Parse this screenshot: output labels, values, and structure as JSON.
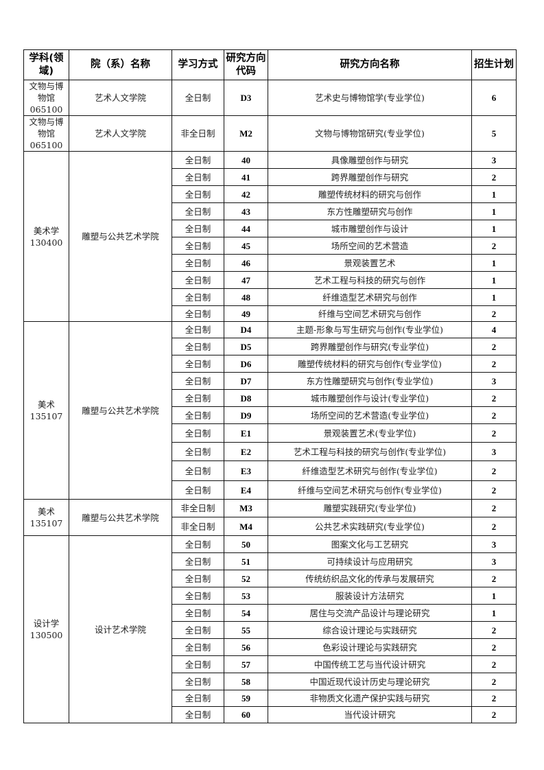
{
  "headers": [
    "学科(领域)",
    "院（系）名称",
    "学习方式",
    "研究方向代码",
    "研究方向名称",
    "招生计划"
  ],
  "groups": [
    {
      "discipline": "文物与博物馆",
      "code": "065100",
      "department": "艺术人文学院",
      "rows": [
        {
          "mode": "全日制",
          "code": "D3",
          "name": "艺术史与博物馆学(专业学位)",
          "plan": "6"
        }
      ]
    },
    {
      "discipline": "文物与博物馆",
      "code": "065100",
      "department": "艺术人文学院",
      "rows": [
        {
          "mode": "非全日制",
          "code": "M2",
          "name": "文物与博物馆研究(专业学位)",
          "plan": "5"
        }
      ]
    },
    {
      "discipline": "美术学",
      "code": "130400",
      "department": "雕塑与公共艺术学院",
      "rows": [
        {
          "mode": "全日制",
          "code": "40",
          "name": "具像雕塑创作与研究",
          "plan": "3"
        },
        {
          "mode": "全日制",
          "code": "41",
          "name": "跨界雕塑创作与研究",
          "plan": "2"
        },
        {
          "mode": "全日制",
          "code": "42",
          "name": "雕塑传统材料的研究与创作",
          "plan": "1"
        },
        {
          "mode": "全日制",
          "code": "43",
          "name": "东方性雕塑研究与创作",
          "plan": "1"
        },
        {
          "mode": "全日制",
          "code": "44",
          "name": "城市雕塑创作与设计",
          "plan": "1"
        },
        {
          "mode": "全日制",
          "code": "45",
          "name": "场所空间的艺术营造",
          "plan": "2"
        },
        {
          "mode": "全日制",
          "code": "46",
          "name": "景观装置艺术",
          "plan": "1"
        },
        {
          "mode": "全日制",
          "code": "47",
          "name": "艺术工程与科技的研究与创作",
          "plan": "1"
        },
        {
          "mode": "全日制",
          "code": "48",
          "name": "纤维造型艺术研究与创作",
          "plan": "1"
        },
        {
          "mode": "全日制",
          "code": "49",
          "name": "纤维与空间艺术研究与创作",
          "plan": "2"
        }
      ]
    },
    {
      "discipline": "美术",
      "code": "135107",
      "department": "雕塑与公共艺术学院",
      "rows": [
        {
          "mode": "全日制",
          "code": "D4",
          "name": "主题-形象与写生研究与创作(专业学位)",
          "plan": "4"
        },
        {
          "mode": "全日制",
          "code": "D5",
          "name": "跨界雕塑创作与研究(专业学位)",
          "plan": "2"
        },
        {
          "mode": "全日制",
          "code": "D6",
          "name": "雕塑传统材料的研究与创作(专业学位)",
          "plan": "2"
        },
        {
          "mode": "全日制",
          "code": "D7",
          "name": "东方性雕塑研究与创作(专业学位)",
          "plan": "3"
        },
        {
          "mode": "全日制",
          "code": "D8",
          "name": "城市雕塑创作与设计(专业学位)",
          "plan": "2"
        },
        {
          "mode": "全日制",
          "code": "D9",
          "name": "场所空间的艺术营造(专业学位)",
          "plan": "2"
        },
        {
          "mode": "全日制",
          "code": "E1",
          "name": "景观装置艺术(专业学位)",
          "plan": "2"
        },
        {
          "mode": "全日制",
          "code": "E2",
          "name": "艺术工程与科技的研究与创作(专业学位)",
          "plan": "3"
        },
        {
          "mode": "全日制",
          "code": "E3",
          "name": "纤维造型艺术研究与创作(专业学位)",
          "plan": "2"
        },
        {
          "mode": "全日制",
          "code": "E4",
          "name": "纤维与空间艺术研究与创作(专业学位)",
          "plan": "2"
        }
      ]
    },
    {
      "discipline": "美术",
      "code": "135107",
      "department": "雕塑与公共艺术学院",
      "rows": [
        {
          "mode": "非全日制",
          "code": "M3",
          "name": "雕塑实践研究(专业学位)",
          "plan": "2"
        },
        {
          "mode": "非全日制",
          "code": "M4",
          "name": "公共艺术实践研究(专业学位)",
          "plan": "2"
        }
      ]
    },
    {
      "discipline": "设计学",
      "code": "130500",
      "department": "设计艺术学院",
      "rows": [
        {
          "mode": "全日制",
          "code": "50",
          "name": "图案文化与工艺研究",
          "plan": "3"
        },
        {
          "mode": "全日制",
          "code": "51",
          "name": "可持续设计与应用研究",
          "plan": "3"
        },
        {
          "mode": "全日制",
          "code": "52",
          "name": "传统纺织品文化的传承与发展研究",
          "plan": "2"
        },
        {
          "mode": "全日制",
          "code": "53",
          "name": "服装设计方法研究",
          "plan": "1"
        },
        {
          "mode": "全日制",
          "code": "54",
          "name": "居住与交流产品设计与理论研究",
          "plan": "1"
        },
        {
          "mode": "全日制",
          "code": "55",
          "name": "综合设计理论与实践研究",
          "plan": "2"
        },
        {
          "mode": "全日制",
          "code": "56",
          "name": "色彩设计理论与实践研究",
          "plan": "2"
        },
        {
          "mode": "全日制",
          "code": "57",
          "name": "中国传统工艺与当代设计研究",
          "plan": "2"
        },
        {
          "mode": "全日制",
          "code": "58",
          "name": "中国近现代设计历史与理论研究",
          "plan": "2"
        },
        {
          "mode": "全日制",
          "code": "59",
          "name": "非物质文化遗产保护实践与研究",
          "plan": "2"
        },
        {
          "mode": "全日制",
          "code": "60",
          "name": "当代设计研究",
          "plan": "2"
        }
      ]
    }
  ]
}
